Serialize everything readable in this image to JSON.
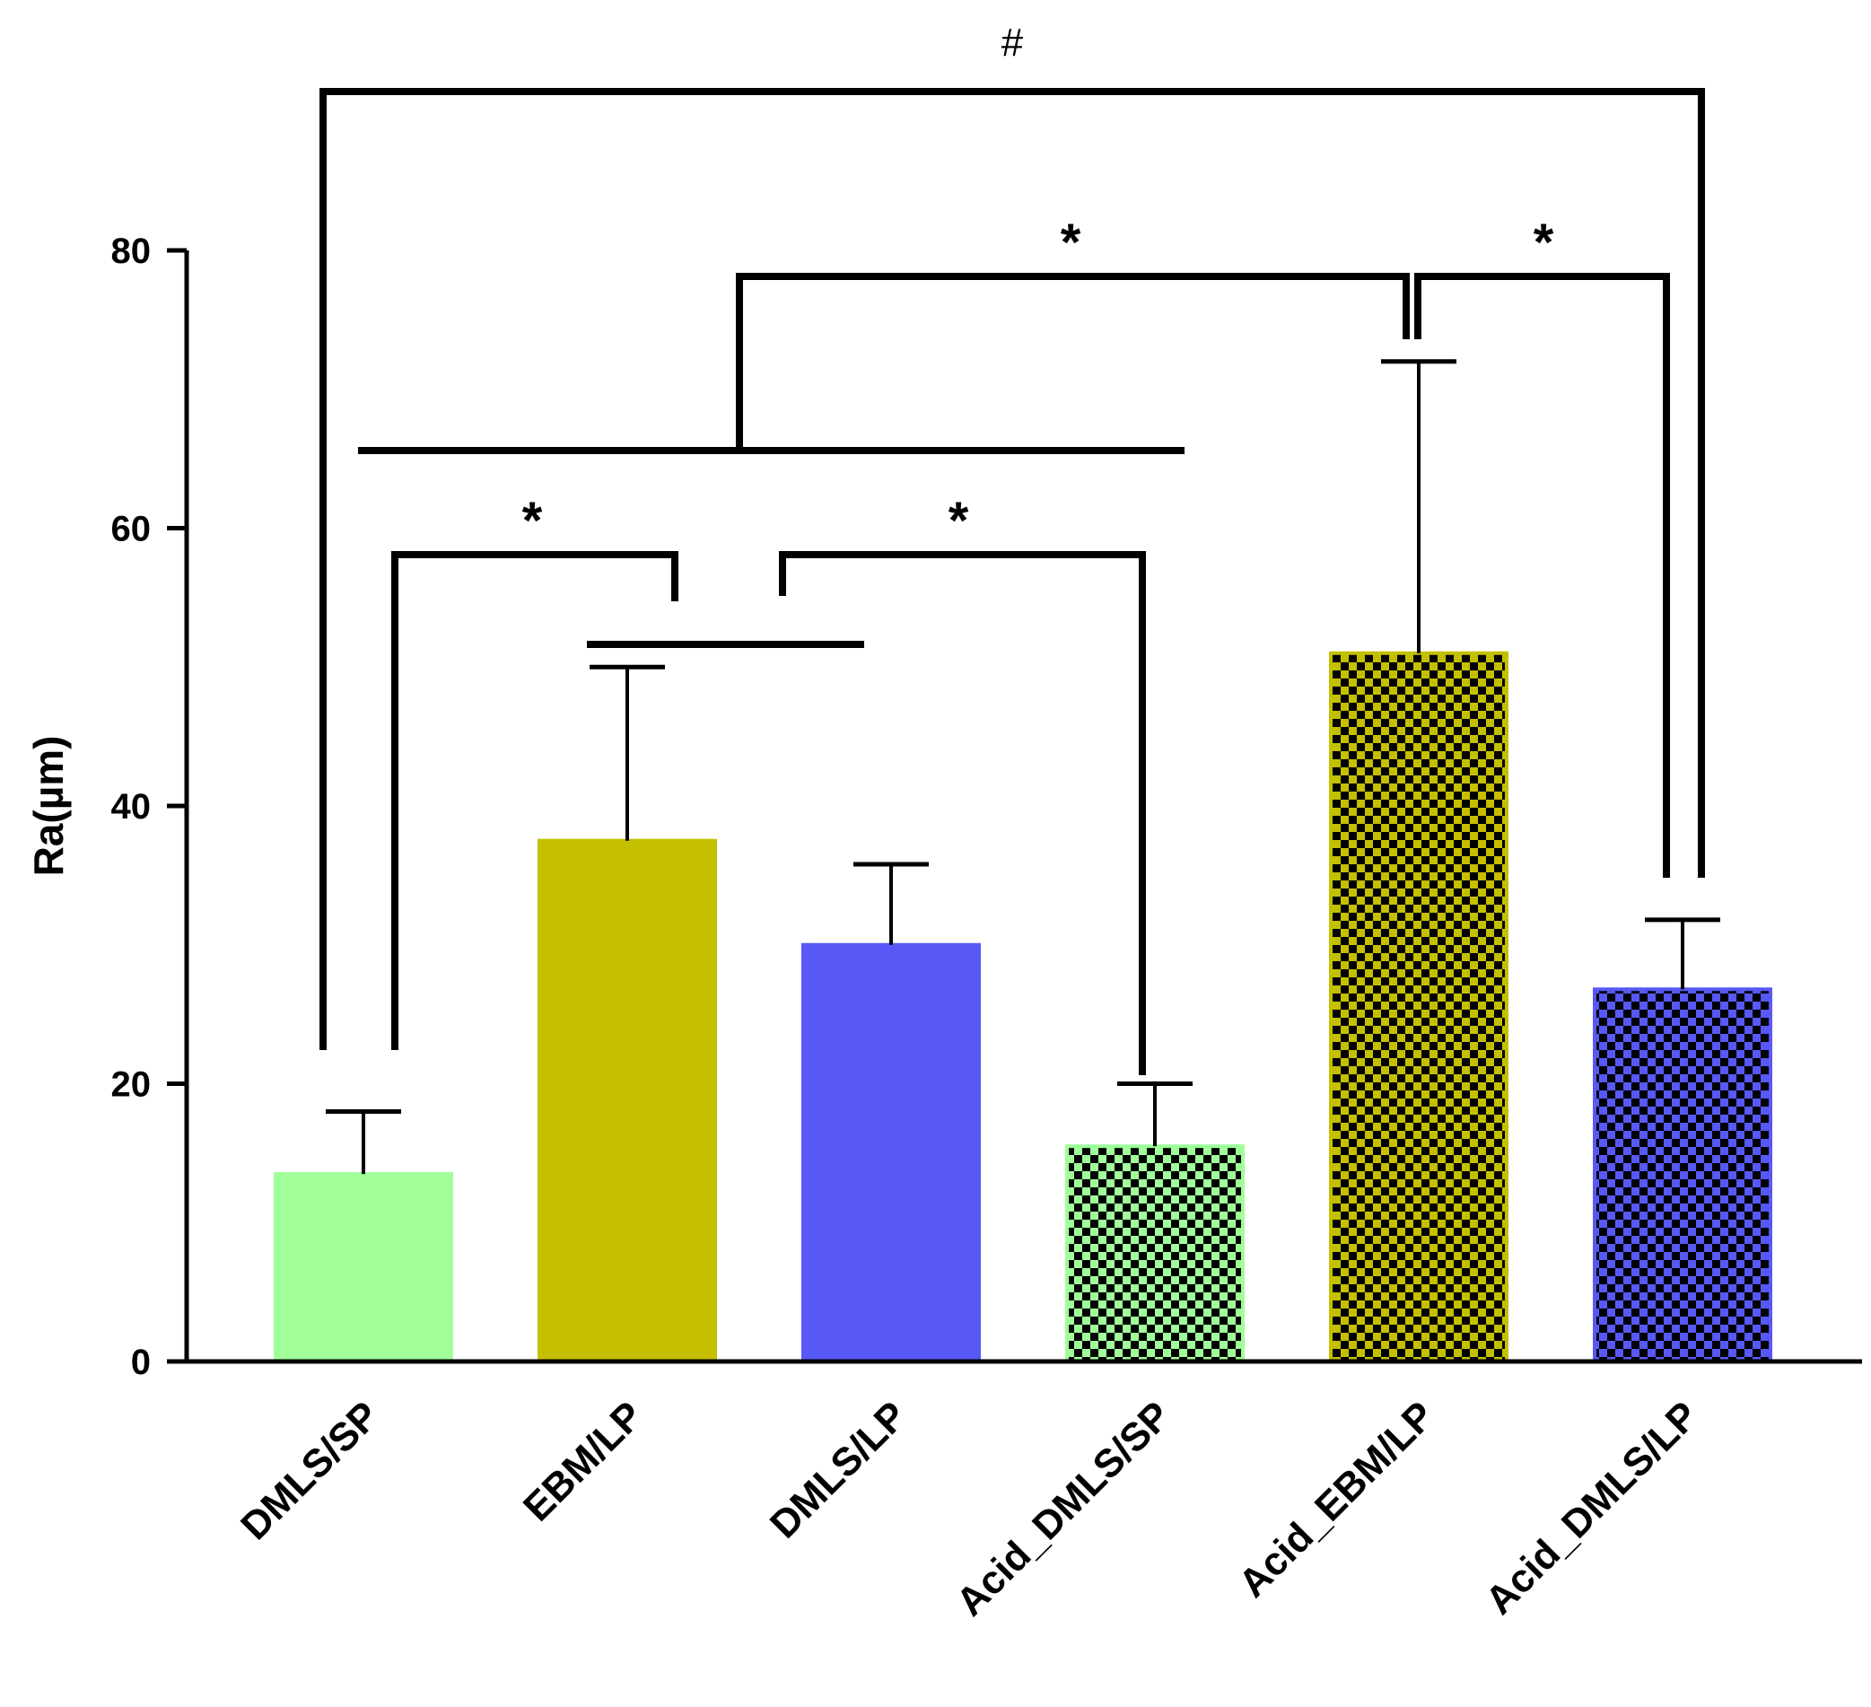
{
  "chart_data": {
    "type": "bar",
    "title": "",
    "xlabel": "",
    "ylabel": "Ra(µm)",
    "ylim": [
      0,
      80
    ],
    "yticks": [
      0,
      20,
      40,
      60,
      80
    ],
    "grid": false,
    "categories": [
      "DMLS/SP",
      "EBM/LP",
      "DMLS/LP",
      "Acid_DMLS/SP",
      "Acid_EBM/LP",
      "Acid_DMLS/LP"
    ],
    "values": [
      13.5,
      37.5,
      30,
      15.5,
      51,
      26.8
    ],
    "errors": [
      4.5,
      12.5,
      5.8,
      4.5,
      21,
      5
    ],
    "colors": [
      "#a0ff99",
      "#c4c000",
      "#5858f7",
      "#a0ff99",
      "#c4c000",
      "#5858f7"
    ],
    "patterns": [
      "solid",
      "solid",
      "solid",
      "checkerboard",
      "checkerboard",
      "checkerboard"
    ],
    "annotations": [
      {
        "label": "*",
        "between": [
          "DMLS/SP",
          "EBM/LP + DMLS/LP"
        ]
      },
      {
        "label": "*",
        "between": [
          "EBM/LP + DMLS/LP",
          "Acid_DMLS/SP"
        ]
      },
      {
        "label": "*",
        "between": [
          "DMLS/SP to Acid_DMLS/SP",
          "Acid_EBM/LP"
        ]
      },
      {
        "label": "*",
        "between": [
          "Acid_EBM/LP",
          "Acid_DMLS/LP"
        ]
      },
      {
        "label": "#",
        "between": [
          "DMLS/SP",
          "Acid_DMLS/LP"
        ]
      }
    ]
  }
}
